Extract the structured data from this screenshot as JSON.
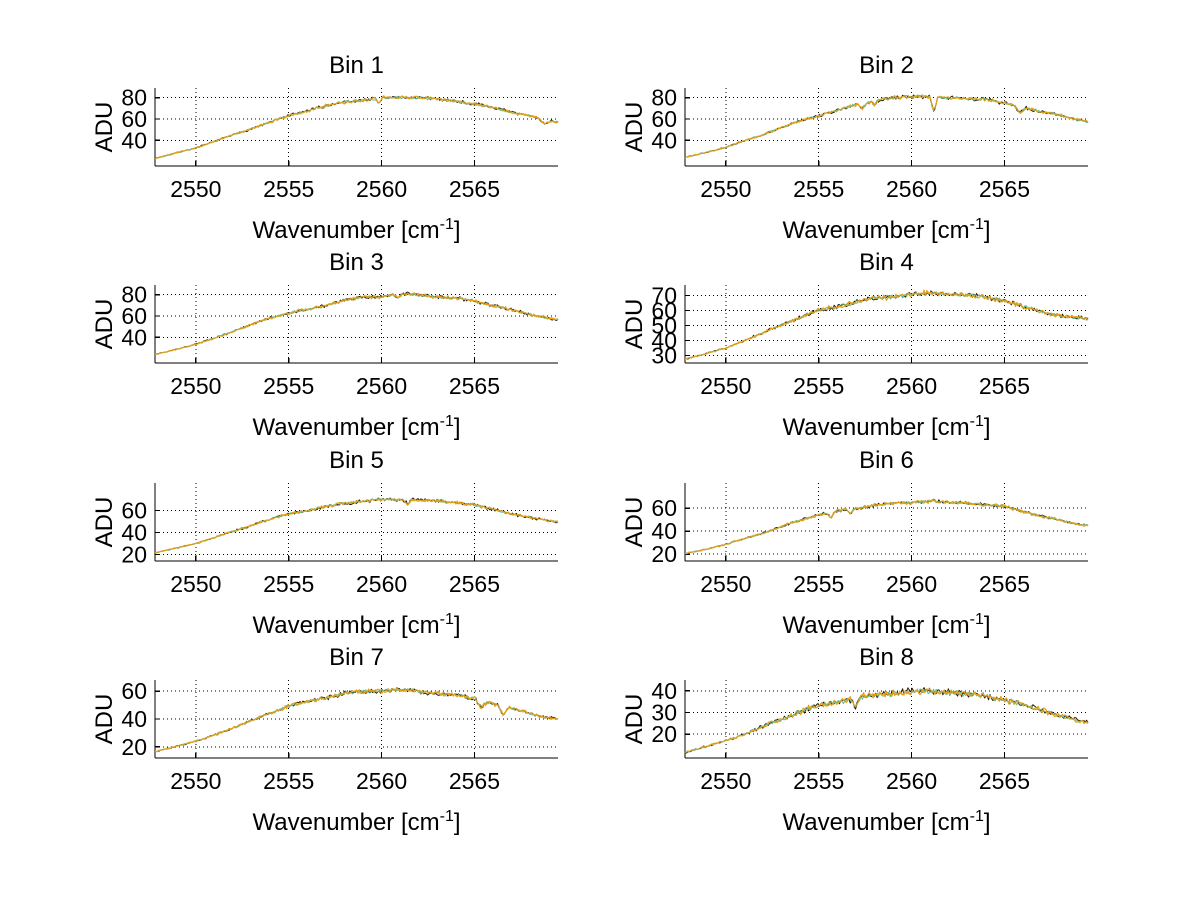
{
  "figure": {
    "ylabel": "ADU",
    "xlabel_main": "Wavenumber [cm",
    "xlabel_sup": "-1",
    "xlabel_close": "]",
    "background": "#ffffff",
    "grid_style": "dotted",
    "axis_color": "#000000",
    "series_colors": {
      "dark": "#221a0c",
      "green": "#5bbf8f",
      "orange": "#e3a018"
    },
    "xlim": [
      2547.8,
      2569.5
    ],
    "xticks": [
      2550,
      2555,
      2560,
      2565
    ],
    "x_control_shared": [
      2547.8,
      2549,
      2550,
      2551,
      2552,
      2553,
      2554,
      2555,
      2556,
      2557,
      2558,
      2559,
      2560,
      2561,
      2562,
      2563,
      2564,
      2565,
      2566,
      2567,
      2568,
      2569,
      2569.5
    ]
  },
  "chart_data": [
    {
      "type": "line",
      "title": "Bin 1",
      "ylabel": "ADU",
      "ylim": [
        16,
        89
      ],
      "yticks": [
        40,
        60,
        80
      ],
      "y_control": [
        23,
        28.5,
        33,
        39,
        45,
        51,
        57,
        63,
        68,
        72,
        76,
        78,
        79.5,
        80.5,
        80,
        78.5,
        77,
        74,
        70.5,
        66.5,
        63,
        58.5,
        57
      ],
      "spikes": [
        {
          "x": 2559.85,
          "dy": -5,
          "w": 0.2
        },
        {
          "x": 2568.75,
          "dy": -4.5,
          "w": 0.35
        }
      ]
    },
    {
      "type": "line",
      "title": "Bin 2",
      "ylabel": "ADU",
      "ylim": [
        16,
        89
      ],
      "yticks": [
        40,
        60,
        80
      ],
      "y_control": [
        24,
        29,
        33.5,
        39.5,
        45.5,
        52,
        58,
        63,
        68,
        73,
        77.5,
        79.5,
        81,
        81.5,
        79.5,
        79,
        78.5,
        74.5,
        71,
        67,
        63.5,
        59,
        57.5
      ],
      "spikes": [
        {
          "x": 2557.35,
          "dy": -5,
          "w": 0.25
        },
        {
          "x": 2558.0,
          "dy": -4,
          "w": 0.2
        },
        {
          "x": 2561.2,
          "dy": -14.5,
          "w": 0.22
        },
        {
          "x": 2565.85,
          "dy": -6,
          "w": 0.3
        }
      ]
    },
    {
      "type": "line",
      "title": "Bin 3",
      "ylabel": "ADU",
      "ylim": [
        16,
        89
      ],
      "yticks": [
        40,
        60,
        80
      ],
      "y_control": [
        24,
        29,
        33.5,
        39.5,
        45.5,
        52,
        58.5,
        62.5,
        66,
        70,
        74.5,
        77.5,
        78.5,
        80.5,
        79.5,
        78,
        76.5,
        74,
        70,
        65.5,
        61.5,
        58,
        56.5
      ],
      "spikes": [
        {
          "x": 2560.9,
          "dy": -4,
          "w": 0.2
        }
      ]
    },
    {
      "type": "line",
      "title": "Bin 4",
      "ylabel": "ADU",
      "ylim": [
        25,
        77
      ],
      "yticks": [
        30,
        40,
        50,
        60,
        70
      ],
      "y_control": [
        27.5,
        31.5,
        35,
        40,
        45,
        50.5,
        55.5,
        60,
        62.5,
        65.5,
        68,
        69.5,
        70.5,
        71.5,
        71,
        70.5,
        69,
        66.5,
        62.5,
        59,
        56.5,
        55,
        54.5
      ],
      "spikes": []
    },
    {
      "type": "line",
      "title": "Bin 5",
      "ylabel": "ADU",
      "ylim": [
        14,
        85
      ],
      "yticks": [
        20,
        40,
        60
      ],
      "y_control": [
        21.5,
        26,
        30,
        35.5,
        41,
        46.5,
        52,
        57,
        60,
        63.5,
        66.5,
        68.5,
        69.5,
        70,
        69.5,
        68.5,
        67.5,
        65,
        61,
        57,
        53.5,
        50.5,
        49.5
      ],
      "spikes": [
        {
          "x": 2561.4,
          "dy": -4,
          "w": 0.2
        }
      ]
    },
    {
      "type": "line",
      "title": "Bin 6",
      "ylabel": "ADU",
      "ylim": [
        14,
        82
      ],
      "yticks": [
        20,
        40,
        60
      ],
      "y_control": [
        20.5,
        24.5,
        28.5,
        33.5,
        38.5,
        44,
        49.5,
        54.5,
        57.5,
        60,
        62.5,
        64.5,
        65,
        66.5,
        65,
        64.5,
        63,
        61.5,
        57.5,
        53,
        49.5,
        46,
        45
      ],
      "spikes": [
        {
          "x": 2555.65,
          "dy": -5,
          "w": 0.25
        },
        {
          "x": 2556.7,
          "dy": -4,
          "w": 0.2
        }
      ]
    },
    {
      "type": "line",
      "title": "Bin 7",
      "ylabel": "ADU",
      "ylim": [
        12,
        68
      ],
      "yticks": [
        20,
        40,
        60
      ],
      "y_control": [
        16.5,
        20.5,
        24,
        28.5,
        33.5,
        39,
        44.5,
        49,
        52.5,
        55.5,
        58,
        59.5,
        60.5,
        61,
        60,
        58.5,
        57,
        54.5,
        51,
        47.5,
        44,
        41,
        40
      ],
      "spikes": [
        {
          "x": 2565.35,
          "dy": -5,
          "w": 0.3
        },
        {
          "x": 2566.55,
          "dy": -6.5,
          "w": 0.3
        }
      ]
    },
    {
      "type": "line",
      "title": "Bin 8",
      "ylabel": "ADU",
      "ylim": [
        9,
        45
      ],
      "yticks": [
        20,
        30,
        40
      ],
      "y_control": [
        11.5,
        14.5,
        17,
        20,
        23.5,
        27,
        30.5,
        33,
        35,
        36.5,
        38,
        39,
        39.5,
        40,
        39.5,
        38.5,
        37.5,
        36,
        33.5,
        31,
        28.5,
        26,
        25
      ],
      "spikes": [
        {
          "x": 2557.0,
          "dy": -4,
          "w": 0.25
        }
      ]
    }
  ]
}
